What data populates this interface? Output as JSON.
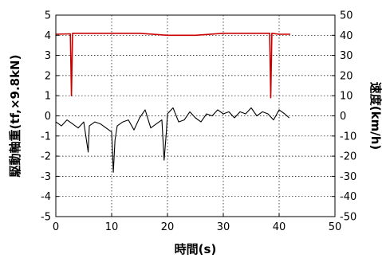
{
  "chart_data": {
    "type": "line",
    "title": "",
    "xlabel": "時間(s)",
    "ylabel_left": "駆動軸重(tf,×9.8kN)",
    "ylabel_right": "速度(km/h)",
    "xlim": [
      0,
      50
    ],
    "ylim_left": [
      -5,
      5
    ],
    "ylim_right": [
      -50,
      50
    ],
    "x_ticks": [
      "0",
      "10",
      "20",
      "30",
      "40",
      "50"
    ],
    "y_ticks_left": [
      "-5",
      "-4",
      "-3",
      "-2",
      "-1",
      "0",
      "1",
      "2",
      "3",
      "4",
      "5"
    ],
    "y_ticks_right": [
      "-50",
      "-40",
      "-30",
      "-20",
      "-10",
      "0",
      "10",
      "20",
      "30",
      "40",
      "50"
    ],
    "grid": true,
    "series": [
      {
        "axis": "left",
        "color": "#000000",
        "x": [
          0.0,
          1.0,
          2.0,
          3.0,
          4.0,
          5.0,
          5.8,
          6.0,
          7.0,
          8.0,
          9.0,
          10.0,
          10.3,
          10.6,
          11.0,
          12.0,
          13.0,
          14.0,
          15.0,
          16.0,
          17.0,
          18.0,
          19.0,
          19.4,
          19.8,
          20.0,
          21.0,
          22.0,
          23.0,
          24.0,
          25.0,
          26.0,
          27.0,
          28.0,
          29.0,
          30.0,
          31.0,
          32.0,
          33.0,
          34.0,
          35.0,
          36.0,
          37.0,
          38.0,
          39.0,
          40.0,
          41.0,
          41.8
        ],
        "y": [
          -0.3,
          -0.5,
          -0.2,
          -0.4,
          -0.6,
          -0.3,
          -1.8,
          -0.5,
          -0.3,
          -0.4,
          -0.6,
          -0.8,
          -2.8,
          -1.2,
          -0.5,
          -0.3,
          -0.2,
          -0.7,
          -0.1,
          0.3,
          -0.6,
          -0.4,
          -0.2,
          -2.2,
          -0.8,
          0.1,
          0.4,
          -0.3,
          -0.2,
          0.2,
          -0.1,
          -0.3,
          0.1,
          0.0,
          0.3,
          0.1,
          0.2,
          -0.1,
          0.2,
          0.1,
          0.4,
          0.0,
          0.2,
          0.1,
          -0.2,
          0.3,
          0.1,
          -0.1
        ]
      },
      {
        "axis": "right",
        "color": "#cc0000",
        "x": [
          0.0,
          2.6,
          2.8,
          3.0,
          5.0,
          10.0,
          15.0,
          20.0,
          25.0,
          30.0,
          35.0,
          38.3,
          38.5,
          38.7,
          40.0,
          42.0
        ],
        "y": [
          40.5,
          40.7,
          10.0,
          41.0,
          41.0,
          41.0,
          41.0,
          40.0,
          40.0,
          41.0,
          41.0,
          41.0,
          9.0,
          41.0,
          40.5,
          40.5
        ]
      }
    ]
  }
}
